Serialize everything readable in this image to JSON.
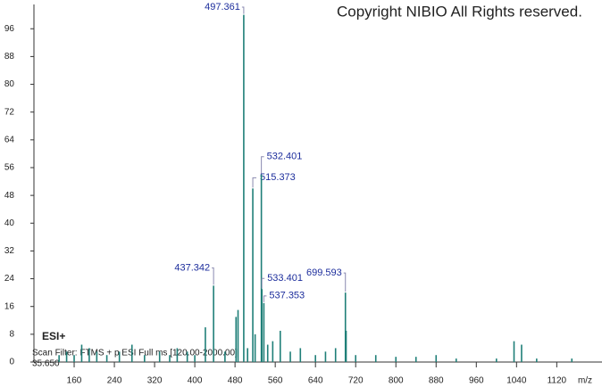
{
  "copyright": "Copyright NIBIO All Rights reserved.",
  "chart_data": {
    "type": "spectrum",
    "x_label": "m/z",
    "ionization": "ESI+",
    "scan_filter": "Scan Filter: FTMS + p ESI Full ms [120.00-2000.00]",
    "retention_time": "35.650",
    "color": "#1f7f78",
    "label_color": "#1c2d9c",
    "x": [
      130,
      145,
      160,
      175,
      190,
      205,
      225,
      250,
      275,
      300,
      330,
      350,
      365,
      385,
      400,
      421,
      437.342,
      460,
      482,
      486,
      497.361,
      505,
      515.373,
      520,
      532.401,
      533.401,
      537.353,
      545,
      555,
      570,
      590,
      610,
      640,
      660,
      680,
      699.593,
      701,
      720,
      760,
      800,
      840,
      880,
      920,
      1000,
      1035,
      1050,
      1080,
      1150
    ],
    "values": [
      2,
      3,
      2,
      5,
      4,
      3,
      2,
      3,
      5,
      2,
      3,
      2,
      4,
      3,
      2,
      10,
      22,
      3,
      13,
      15,
      100,
      4,
      50,
      8,
      54,
      21,
      17,
      5,
      6,
      9,
      3,
      4,
      2,
      3,
      4,
      20,
      9,
      2,
      2,
      1.5,
      1.5,
      2,
      1,
      1,
      6,
      5,
      1,
      1
    ],
    "peak_labels": [
      null,
      null,
      null,
      null,
      null,
      null,
      null,
      null,
      null,
      null,
      null,
      null,
      null,
      null,
      null,
      null,
      "437.342",
      null,
      null,
      null,
      "497.361",
      null,
      "515.373",
      null,
      "532.401",
      "533.401",
      "537.353",
      null,
      null,
      null,
      null,
      null,
      null,
      null,
      null,
      "699.593",
      null,
      null,
      null,
      null,
      null,
      null,
      null,
      null,
      null,
      null,
      null,
      null
    ],
    "xlim": [
      80,
      1210
    ],
    "ylim": [
      0,
      103
    ],
    "xticks": [
      160,
      240,
      320,
      400,
      480,
      560,
      640,
      720,
      800,
      880,
      960,
      1040,
      1120
    ],
    "yticks": [
      0,
      8,
      16,
      24,
      32,
      40,
      48,
      56,
      64,
      72,
      80,
      88,
      96
    ]
  }
}
